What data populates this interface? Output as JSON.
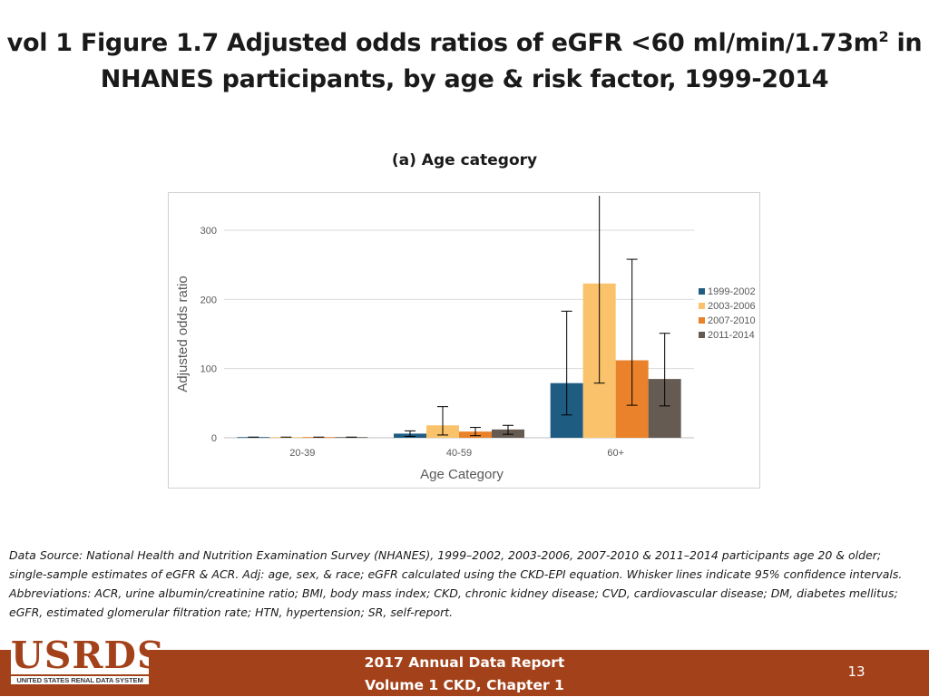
{
  "slide": {
    "title_line1": "vol 1 Figure 1.7 Adjusted odds ratios of eGFR <60 ml/min/1.73m",
    "title_sup": "2",
    "title_line1_end": " in",
    "title_line2": "NHANES participants, by age & risk factor, 1999-2014"
  },
  "chart_data": {
    "type": "bar",
    "title": "(a) Age category",
    "xlabel": "Age Category",
    "ylabel": "Adjusted odds ratio",
    "ylim": [
      0,
      300
    ],
    "yticks": [
      0,
      100,
      200,
      300
    ],
    "grid": true,
    "legend_position": "right",
    "categories": [
      "20-39",
      "40-59",
      "60+"
    ],
    "series": [
      {
        "name": "1999-2002",
        "color": "#1f5c82",
        "values": [
          1,
          6,
          79
        ],
        "ci_low": [
          1,
          2,
          33
        ],
        "ci_high": [
          1,
          10,
          183
        ]
      },
      {
        "name": "2003-2006",
        "color": "#f9c26b",
        "values": [
          1,
          18,
          223
        ],
        "ci_low": [
          1,
          4,
          79
        ],
        "ci_high": [
          1,
          45,
          350
        ]
      },
      {
        "name": "2007-2010",
        "color": "#e9822a",
        "values": [
          1,
          9,
          112
        ],
        "ci_low": [
          1,
          3,
          47
        ],
        "ci_high": [
          1,
          15,
          258
        ]
      },
      {
        "name": "2011-2014",
        "color": "#655b53",
        "values": [
          1,
          12,
          85
        ],
        "ci_low": [
          1,
          5,
          46
        ],
        "ci_high": [
          1,
          18,
          151
        ]
      }
    ]
  },
  "footnote": "Data Source: National Health and Nutrition Examination Survey (NHANES), 1999–2002, 2003-2006, 2007-2010 & 2011–2014 participants age 20 & older; single-sample estimates of eGFR & ACR. Adj: age, sex, & race; eGFR calculated using the CKD-EPI equation. Whisker lines indicate 95% confidence intervals. Abbreviations: ACR, urine albumin/creatinine ratio; BMI, body mass index; CKD, chronic kidney disease; CVD, cardiovascular disease; DM, diabetes mellitus; eGFR, estimated glomerular filtration rate; HTN, hypertension; SR, self-report.",
  "footer": {
    "line1": "2017 Annual Data Report",
    "line2": "Volume 1 CKD, Chapter 1",
    "page_number": "13"
  },
  "logo": {
    "main": "USRDS",
    "sub": "UNITED STATES RENAL DATA SYSTEM"
  }
}
